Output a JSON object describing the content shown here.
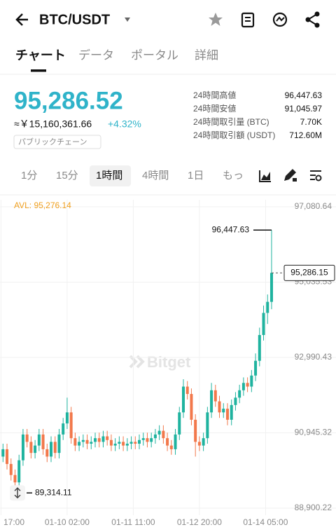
{
  "header": {
    "title": "BTC/USDT"
  },
  "tabs": [
    "チャート",
    "データ",
    "ポータル",
    "詳細"
  ],
  "price": {
    "last": "95,286.52",
    "fiat": "≈￥15,160,361.66",
    "change": "+4.32%",
    "tag": "パブリックチェーン"
  },
  "stats": [
    {
      "label": "24時間高値",
      "value": "96,447.63"
    },
    {
      "label": "24時間安値",
      "value": "91,045.97"
    },
    {
      "label": "24時間取引量 (BTC)",
      "value": "7.70K"
    },
    {
      "label": "24時間取引額 (USDT)",
      "value": "712.60M"
    }
  ],
  "timeframes": [
    "1分",
    "15分",
    "1時間",
    "4時間",
    "1日",
    "もっ"
  ],
  "watermark": "Bitget",
  "chart_data": {
    "type": "candlestick",
    "x": [
      1,
      3,
      5,
      7,
      9,
      11,
      13,
      15,
      17,
      19,
      21,
      23,
      25,
      27,
      29,
      31,
      33,
      35,
      37,
      39,
      41,
      43,
      45,
      47,
      49,
      51,
      53,
      55,
      57,
      59,
      61,
      63,
      65,
      67,
      69,
      71,
      73,
      75,
      77,
      79,
      81,
      83,
      85,
      87,
      89,
      91,
      93,
      95,
      97,
      99,
      101,
      103,
      105,
      107,
      109,
      111,
      113,
      115,
      117,
      119,
      121,
      123,
      125,
      127,
      129,
      131,
      133,
      135
    ],
    "open": [
      90300,
      90500,
      90100,
      89800,
      89600,
      90200,
      90900,
      90700,
      90400,
      90600,
      90900,
      90500,
      90300,
      90700,
      90400,
      90900,
      91200,
      91500,
      90800,
      90600,
      90700,
      90750,
      90650,
      90700,
      90800,
      90700,
      90850,
      90750,
      90600,
      90650,
      90700,
      90600,
      90650,
      90700,
      90650,
      90750,
      90800,
      90700,
      90800,
      90900,
      91000,
      90800,
      90600,
      90500,
      90900,
      91500,
      92200,
      92000,
      91300,
      90700,
      90600,
      90800,
      91500,
      92100,
      91800,
      91500,
      91600,
      91300,
      91700,
      91900,
      92100,
      92300,
      92200,
      92500,
      92900,
      93600,
      94200,
      94500
    ],
    "high": [
      90650,
      90650,
      90250,
      89950,
      90350,
      91050,
      91050,
      90850,
      90750,
      91050,
      91050,
      90650,
      90850,
      90850,
      91050,
      91350,
      91900,
      91650,
      90950,
      90850,
      90900,
      90900,
      90850,
      90950,
      90950,
      91000,
      91000,
      90900,
      90800,
      90850,
      90850,
      90800,
      90850,
      90850,
      90900,
      90950,
      90950,
      90950,
      91050,
      91150,
      91150,
      90950,
      90750,
      91050,
      91650,
      92400,
      92350,
      92150,
      91450,
      90850,
      90950,
      91650,
      92300,
      92250,
      91950,
      91750,
      91750,
      91850,
      92050,
      92250,
      92450,
      92450,
      92650,
      93100,
      93800,
      94400,
      94700,
      96447.63
    ],
    "low": [
      90150,
      89950,
      89650,
      89314.11,
      89450,
      90050,
      90550,
      90250,
      90250,
      90450,
      90350,
      90150,
      90150,
      90250,
      90250,
      90750,
      91050,
      90650,
      90450,
      90450,
      90550,
      90500,
      90500,
      90550,
      90550,
      90550,
      90600,
      90450,
      90450,
      90500,
      90450,
      90450,
      90500,
      90500,
      90500,
      90600,
      90550,
      90550,
      90650,
      90750,
      90650,
      90450,
      90350,
      90350,
      90750,
      91350,
      91850,
      91150,
      90300,
      90450,
      90450,
      90650,
      91350,
      91650,
      91350,
      91350,
      91150,
      91150,
      91550,
      91750,
      91950,
      92050,
      92050,
      92350,
      92750,
      93450,
      93900,
      94300
    ],
    "close": [
      90500,
      90100,
      89800,
      89600,
      90200,
      90900,
      90700,
      90400,
      90600,
      90900,
      90500,
      90300,
      90700,
      90400,
      90900,
      91200,
      91500,
      90800,
      90600,
      90700,
      90750,
      90650,
      90700,
      90800,
      90700,
      90850,
      90750,
      90600,
      90650,
      90700,
      90600,
      90650,
      90700,
      90650,
      90750,
      90800,
      90700,
      90800,
      90900,
      91000,
      90800,
      90600,
      90500,
      90900,
      91500,
      92200,
      92000,
      91300,
      90700,
      90600,
      90800,
      91500,
      92100,
      91800,
      91500,
      91600,
      91300,
      91700,
      91900,
      92100,
      92300,
      92200,
      92500,
      92900,
      93600,
      94200,
      94500,
      95286.15
    ],
    "up_color": "#1fb39f",
    "down_color": "#f2784b",
    "xlim": [
      -0.5,
      139.2
    ],
    "ylim": [
      88900.22,
      97080.64
    ],
    "xticks": [
      {
        "value": 0,
        "label": "17:00"
      },
      {
        "value": 33,
        "label": "01-10 02:00"
      },
      {
        "value": 66,
        "label": "01-11 11:00"
      },
      {
        "value": 99,
        "label": "01-12 20:00"
      },
      {
        "value": 132,
        "label": "01-14 05:00"
      }
    ],
    "yticks": [
      {
        "value": 97080.64,
        "label": "97,080.64"
      },
      {
        "value": 95035.53,
        "label": "95,035.53"
      },
      {
        "value": 92990.43,
        "label": "92,990.43"
      },
      {
        "value": 90945.32,
        "label": "90,945.32"
      },
      {
        "value": 88900.22,
        "label": "88,900.22"
      }
    ],
    "grid": true,
    "avl_label": "AVL: 95,276.14",
    "high_marker": {
      "value": 96447.63,
      "label": "96,447.63"
    },
    "low_marker": {
      "value": 89314.11,
      "label": "89,314.11"
    },
    "last_price": {
      "value": 95286.15,
      "label": "95,286.15"
    }
  }
}
